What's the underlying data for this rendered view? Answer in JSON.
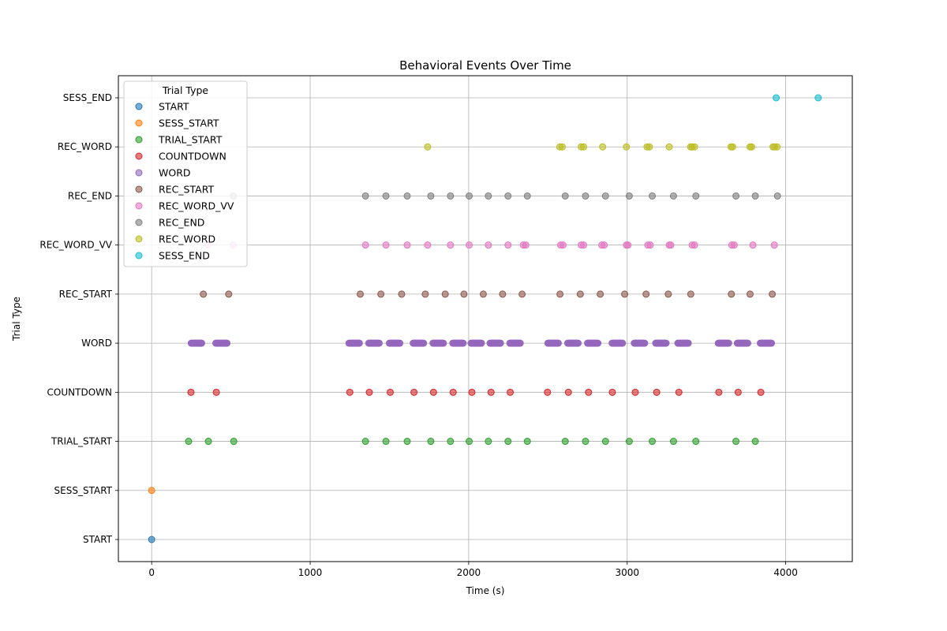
{
  "chart_data": {
    "type": "scatter",
    "title": "Behavioral Events Over Time",
    "xlabel": "Time (s)",
    "ylabel": "Trial Type",
    "xlim": [
      -210,
      4420
    ],
    "x_ticks": [
      0,
      1000,
      2000,
      3000,
      4000
    ],
    "x_tick_labels": [
      "0",
      "1000",
      "2000",
      "3000",
      "4000"
    ],
    "categories": [
      "START",
      "SESS_START",
      "TRIAL_START",
      "COUNTDOWN",
      "WORD",
      "REC_START",
      "REC_WORD_VV",
      "REC_END",
      "REC_WORD",
      "SESS_END"
    ],
    "grid": true,
    "legend": {
      "title": "Trial Type",
      "location": "upper-left"
    },
    "series": [
      {
        "name": "START",
        "color": "#1f77b4",
        "category": "START",
        "x": [
          0
        ]
      },
      {
        "name": "SESS_START",
        "color": "#ff7f0e",
        "category": "SESS_START",
        "x": [
          0
        ]
      },
      {
        "name": "TRIAL_START",
        "color": "#2ca02c",
        "category": "TRIAL_START",
        "x": [
          233,
          358,
          518,
          1349,
          1478,
          1612,
          1761,
          1885,
          2003,
          2124,
          2248,
          2370,
          2609,
          2737,
          2863,
          3013,
          3158,
          3292,
          3433,
          3686,
          3808
        ]
      },
      {
        "name": "COUNTDOWN",
        "color": "#d62728",
        "category": "COUNTDOWN",
        "x": [
          248,
          408,
          1250,
          1373,
          1505,
          1655,
          1778,
          1902,
          2020,
          2141,
          2262,
          2497,
          2629,
          2756,
          2906,
          3051,
          3186,
          3326,
          3578,
          3700,
          3843
        ]
      },
      {
        "name": "WORD",
        "color": "#9467bd",
        "category": "WORD",
        "x": [
          250,
          255,
          260,
          265,
          270,
          275,
          280,
          285,
          290,
          295,
          300,
          305,
          310,
          315,
          405,
          410,
          415,
          420,
          425,
          430,
          435,
          440,
          445,
          450,
          455,
          460,
          465,
          470,
          475,
          1245,
          1250,
          1255,
          1260,
          1265,
          1270,
          1275,
          1280,
          1285,
          1290,
          1295,
          1300,
          1305,
          1310,
          1370,
          1375,
          1380,
          1385,
          1390,
          1395,
          1400,
          1405,
          1410,
          1415,
          1420,
          1425,
          1430,
          1435,
          1500,
          1505,
          1510,
          1515,
          1520,
          1525,
          1530,
          1535,
          1540,
          1545,
          1550,
          1555,
          1560,
          1565,
          1650,
          1655,
          1660,
          1665,
          1670,
          1675,
          1680,
          1685,
          1690,
          1695,
          1700,
          1705,
          1710,
          1715,
          1775,
          1780,
          1785,
          1790,
          1795,
          1800,
          1805,
          1810,
          1815,
          1820,
          1825,
          1830,
          1835,
          1840,
          1900,
          1905,
          1910,
          1915,
          1920,
          1925,
          1930,
          1935,
          1940,
          1945,
          1950,
          1955,
          1960,
          1965,
          2015,
          2020,
          2025,
          2030,
          2035,
          2040,
          2045,
          2050,
          2055,
          2060,
          2065,
          2070,
          2075,
          2080,
          2135,
          2140,
          2145,
          2150,
          2155,
          2160,
          2165,
          2170,
          2175,
          2180,
          2185,
          2190,
          2195,
          2200,
          2260,
          2265,
          2270,
          2275,
          2280,
          2285,
          2290,
          2295,
          2300,
          2305,
          2310,
          2315,
          2320,
          2325,
          2500,
          2505,
          2510,
          2515,
          2520,
          2525,
          2530,
          2535,
          2540,
          2545,
          2550,
          2555,
          2560,
          2565,
          2625,
          2630,
          2635,
          2640,
          2645,
          2650,
          2655,
          2660,
          2665,
          2670,
          2675,
          2680,
          2685,
          2690,
          2750,
          2755,
          2760,
          2765,
          2770,
          2775,
          2780,
          2785,
          2790,
          2795,
          2800,
          2805,
          2810,
          2815,
          2905,
          2910,
          2915,
          2920,
          2925,
          2930,
          2935,
          2940,
          2945,
          2950,
          2955,
          2960,
          2965,
          2970,
          3045,
          3050,
          3055,
          3060,
          3065,
          3070,
          3075,
          3080,
          3085,
          3090,
          3095,
          3100,
          3105,
          3110,
          3180,
          3185,
          3190,
          3195,
          3200,
          3205,
          3210,
          3215,
          3220,
          3225,
          3230,
          3235,
          3240,
          3245,
          3320,
          3325,
          3330,
          3335,
          3340,
          3345,
          3350,
          3355,
          3360,
          3365,
          3370,
          3375,
          3380,
          3385,
          3575,
          3580,
          3585,
          3590,
          3595,
          3600,
          3605,
          3610,
          3615,
          3620,
          3625,
          3630,
          3635,
          3640,
          3695,
          3700,
          3705,
          3710,
          3715,
          3720,
          3725,
          3730,
          3735,
          3740,
          3745,
          3750,
          3755,
          3760,
          3840,
          3845,
          3850,
          3855,
          3860,
          3865,
          3870,
          3875,
          3880,
          3885,
          3890,
          3895,
          3900,
          3905,
          3910
        ]
      },
      {
        "name": "REC_START",
        "color": "#8c564b",
        "category": "REC_START",
        "x": [
          326,
          486,
          1316,
          1446,
          1577,
          1726,
          1852,
          1970,
          2092,
          2214,
          2337,
          2576,
          2704,
          2830,
          2984,
          3119,
          3259,
          3401,
          3657,
          3775,
          3915
        ]
      },
      {
        "name": "REC_WORD_VV",
        "color": "#e377c2",
        "category": "REC_WORD_VV",
        "x": [
          350,
          515,
          1349,
          1478,
          1612,
          1741,
          1885,
          2003,
          2124,
          2248,
          2345,
          2360,
          2580,
          2595,
          2710,
          2725,
          2840,
          2855,
          2995,
          3005,
          3130,
          3145,
          3265,
          3275,
          3410,
          3425,
          3660,
          3675,
          3793,
          3928
        ]
      },
      {
        "name": "REC_END",
        "color": "#7f7f7f",
        "category": "REC_END",
        "x": [
          515,
          1349,
          1478,
          1612,
          1761,
          1885,
          2003,
          2124,
          2248,
          2370,
          2609,
          2737,
          2863,
          3013,
          3158,
          3292,
          3433,
          3686,
          3808,
          3948
        ]
      },
      {
        "name": "REC_WORD",
        "color": "#bcbd22",
        "category": "REC_WORD",
        "x": [
          1741,
          2575,
          2590,
          2710,
          2725,
          2845,
          2995,
          3125,
          3140,
          3265,
          3400,
          3410,
          3425,
          3655,
          3665,
          3775,
          3785,
          3920,
          3930,
          3945
        ]
      },
      {
        "name": "SESS_END",
        "color": "#17becf",
        "category": "SESS_END",
        "x": [
          3940,
          4205
        ]
      }
    ]
  }
}
